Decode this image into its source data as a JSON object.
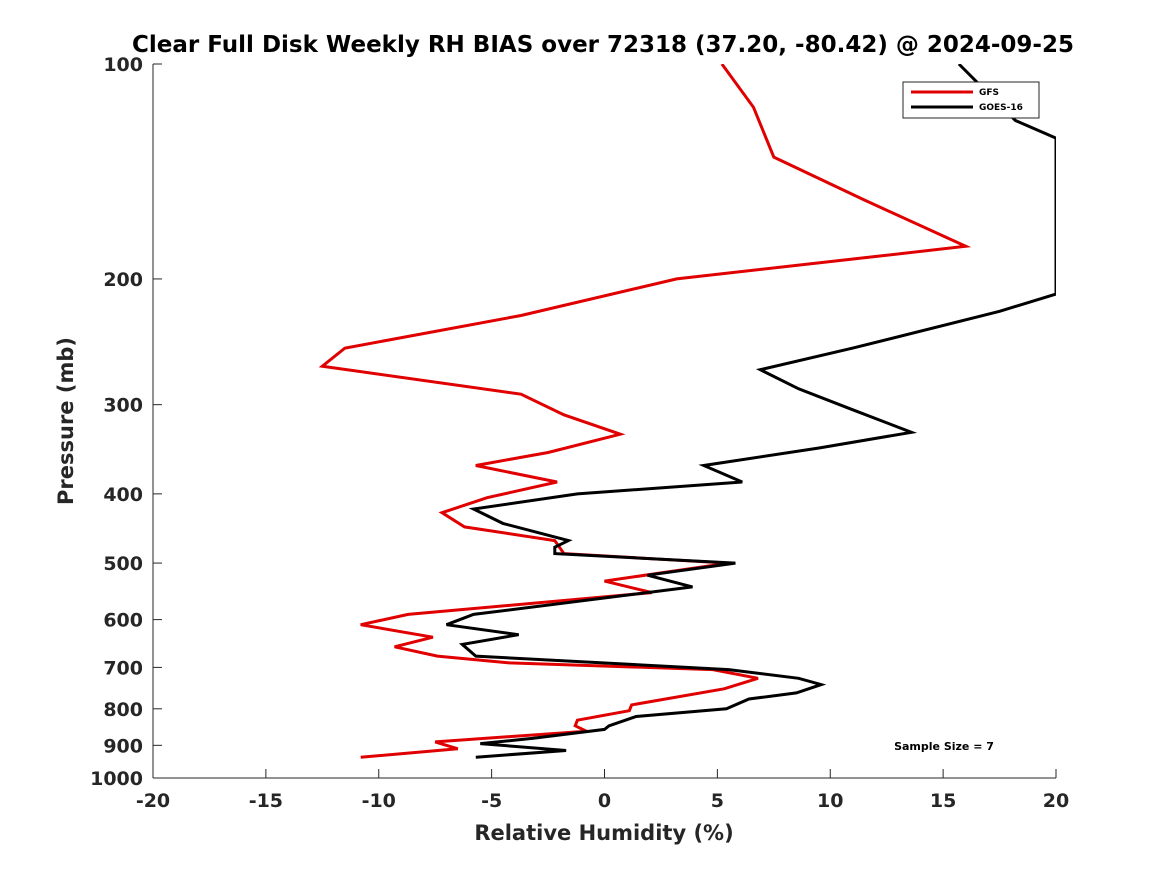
{
  "chart_data": {
    "type": "line",
    "title": "Clear Full Disk Weekly RH BIAS over 72318 (37.20, -80.42) @ 2024-09-25",
    "xlabel": "Relative Humidity (%)",
    "ylabel": "Pressure (mb)",
    "xlim": [
      -20,
      20
    ],
    "ylim": [
      1000,
      100
    ],
    "y_scale": "log",
    "x_ticks": [
      -20,
      -15,
      -10,
      -5,
      0,
      5,
      10,
      15,
      20
    ],
    "y_ticks": [
      100,
      200,
      300,
      400,
      500,
      600,
      700,
      800,
      900,
      1000
    ],
    "grid": false,
    "legend_position": "top-right",
    "annotation": "Sample Size = 7",
    "series": [
      {
        "name": "GFS",
        "color": "#e00000",
        "points": [
          {
            "x": 5.2,
            "y": 100
          },
          {
            "x": 6.6,
            "y": 115
          },
          {
            "x": 7.5,
            "y": 135
          },
          {
            "x": 11.5,
            "y": 155
          },
          {
            "x": 16.0,
            "y": 180
          },
          {
            "x": 3.2,
            "y": 200
          },
          {
            "x": -3.7,
            "y": 225
          },
          {
            "x": -11.5,
            "y": 250
          },
          {
            "x": -12.5,
            "y": 265
          },
          {
            "x": -3.7,
            "y": 290
          },
          {
            "x": -1.8,
            "y": 310
          },
          {
            "x": 0.7,
            "y": 330
          },
          {
            "x": -2.5,
            "y": 350
          },
          {
            "x": -5.7,
            "y": 365
          },
          {
            "x": -2.1,
            "y": 385
          },
          {
            "x": -5.2,
            "y": 405
          },
          {
            "x": -7.2,
            "y": 425
          },
          {
            "x": -6.2,
            "y": 445
          },
          {
            "x": -2.2,
            "y": 465
          },
          {
            "x": -1.8,
            "y": 485
          },
          {
            "x": 5.5,
            "y": 500
          },
          {
            "x": 0.0,
            "y": 530
          },
          {
            "x": 2.1,
            "y": 550
          },
          {
            "x": -8.7,
            "y": 590
          },
          {
            "x": -10.8,
            "y": 610
          },
          {
            "x": -7.6,
            "y": 635
          },
          {
            "x": -9.3,
            "y": 655
          },
          {
            "x": -7.4,
            "y": 675
          },
          {
            "x": -4.2,
            "y": 690
          },
          {
            "x": 4.8,
            "y": 705
          },
          {
            "x": 6.8,
            "y": 725
          },
          {
            "x": 5.3,
            "y": 750
          },
          {
            "x": 1.2,
            "y": 790
          },
          {
            "x": 1.1,
            "y": 805
          },
          {
            "x": -1.2,
            "y": 830
          },
          {
            "x": -1.3,
            "y": 845
          },
          {
            "x": -0.8,
            "y": 860
          },
          {
            "x": -7.5,
            "y": 890
          },
          {
            "x": -6.5,
            "y": 910
          },
          {
            "x": -10.8,
            "y": 935
          }
        ]
      },
      {
        "name": "GOES-16",
        "color": "#000000",
        "points": [
          {
            "x": 15.7,
            "y": 100
          },
          {
            "x": 17.0,
            "y": 110
          },
          {
            "x": 18.2,
            "y": 120
          },
          {
            "x": 20.0,
            "y": 127
          },
          {
            "x": 20.0,
            "y": 210
          },
          {
            "x": 17.5,
            "y": 222
          },
          {
            "x": 11.0,
            "y": 250
          },
          {
            "x": 6.9,
            "y": 268
          },
          {
            "x": 8.6,
            "y": 285
          },
          {
            "x": 11.0,
            "y": 305
          },
          {
            "x": 13.6,
            "y": 328
          },
          {
            "x": 9.5,
            "y": 345
          },
          {
            "x": 4.4,
            "y": 365
          },
          {
            "x": 6.1,
            "y": 385
          },
          {
            "x": -1.2,
            "y": 400
          },
          {
            "x": -5.8,
            "y": 420
          },
          {
            "x": -4.5,
            "y": 440
          },
          {
            "x": -1.6,
            "y": 465
          },
          {
            "x": -2.2,
            "y": 475
          },
          {
            "x": -2.2,
            "y": 485
          },
          {
            "x": 5.8,
            "y": 500
          },
          {
            "x": 1.9,
            "y": 520
          },
          {
            "x": 3.9,
            "y": 540
          },
          {
            "x": -5.8,
            "y": 590
          },
          {
            "x": -7.0,
            "y": 610
          },
          {
            "x": -3.8,
            "y": 630
          },
          {
            "x": -6.3,
            "y": 650
          },
          {
            "x": -5.7,
            "y": 675
          },
          {
            "x": 5.5,
            "y": 705
          },
          {
            "x": 8.6,
            "y": 725
          },
          {
            "x": 9.6,
            "y": 740
          },
          {
            "x": 8.5,
            "y": 760
          },
          {
            "x": 6.4,
            "y": 775
          },
          {
            "x": 5.4,
            "y": 800
          },
          {
            "x": 1.4,
            "y": 820
          },
          {
            "x": 0.2,
            "y": 845
          },
          {
            "x": 0.0,
            "y": 855
          },
          {
            "x": -3.2,
            "y": 880
          },
          {
            "x": -5.5,
            "y": 895
          },
          {
            "x": -1.7,
            "y": 915
          },
          {
            "x": -5.7,
            "y": 935
          }
        ]
      }
    ]
  }
}
